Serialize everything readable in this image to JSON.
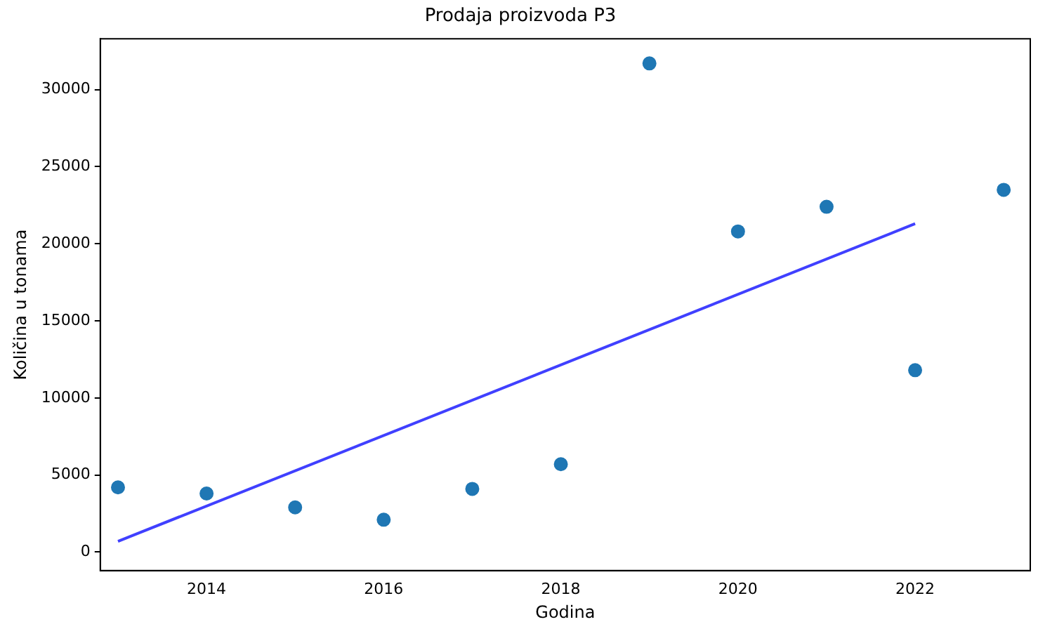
{
  "chart_data": {
    "type": "scatter",
    "title": "Prodaja proizvoda P3",
    "xlabel": "Godina",
    "ylabel": "Količina u tonama",
    "xlim": [
      2012.8,
      2023.3
    ],
    "xticks": [
      2014,
      2016,
      2018,
      2020,
      2022
    ],
    "ylim": [
      -1200,
      33300
    ],
    "yticks": [
      0,
      5000,
      10000,
      15000,
      20000,
      25000,
      30000
    ],
    "grid": false,
    "legend": false,
    "series": [
      {
        "marker": "circle",
        "color": "#1f77b4",
        "x": [
          2013,
          2014,
          2015,
          2016,
          2017,
          2018,
          2019,
          2020,
          2021,
          2022,
          2023
        ],
        "values": [
          4200,
          3800,
          2900,
          2100,
          4100,
          5700,
          31700,
          20800,
          22400,
          11800,
          23500
        ]
      },
      {
        "type": "line",
        "marker": "none",
        "color": "#4040ff",
        "line_style": "solid",
        "x": [
          2013,
          2022
        ],
        "values": [
          700,
          21300
        ]
      }
    ]
  }
}
